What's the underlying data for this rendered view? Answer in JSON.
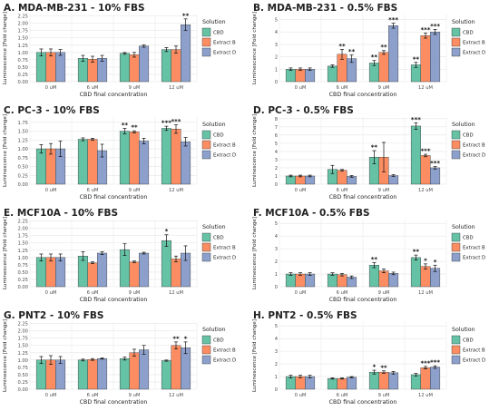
{
  "colors": {
    "CBD": "#66c2a5",
    "Extract B": "#fc8d62",
    "Extract D": "#8da0cb",
    "panel_bg": "#ffffff",
    "grid": "#e6e6e6",
    "axis_text": "#4d4d4d"
  },
  "chart_data": [
    {
      "type": "bar",
      "title": "A. MDA-MB-231 - 10% FBS",
      "xlabel": "CBD final concentration",
      "ylabel": "Luminescence [Fold change]",
      "legend_title": "Solution",
      "legend_position": "right",
      "categories": [
        "0 uM",
        "6 uM",
        "9 uM",
        "12 uM"
      ],
      "ylim": [
        0,
        2.3
      ],
      "yticks": [
        "0.00",
        "0.25",
        "0.50",
        "0.75",
        "1.00",
        "1.25",
        "1.50",
        "1.75",
        "2.00",
        "2.25"
      ],
      "series": [
        {
          "name": "CBD",
          "values": [
            1.0,
            0.8,
            0.97,
            1.1
          ],
          "errors": [
            0.12,
            0.1,
            0.03,
            0.07
          ],
          "sig": [
            "",
            "",
            "",
            ""
          ]
        },
        {
          "name": "Extract B",
          "values": [
            1.0,
            0.77,
            0.92,
            1.1
          ],
          "errors": [
            0.12,
            0.1,
            0.08,
            0.12
          ],
          "sig": [
            "",
            "",
            "",
            ""
          ]
        },
        {
          "name": "Extract D",
          "values": [
            1.0,
            0.8,
            1.22,
            1.95
          ],
          "errors": [
            0.1,
            0.1,
            0.04,
            0.2
          ],
          "sig": [
            "",
            "",
            "",
            "**"
          ]
        }
      ]
    },
    {
      "type": "bar",
      "title": "B. MDA-MB-231 - 0.5% FBS",
      "xlabel": "CBD final concentration",
      "ylabel": "Luminescence [Fold change]",
      "legend_title": "Solution",
      "legend_position": "right",
      "categories": [
        "0 uM",
        "6 uM",
        "9 uM",
        "12 uM"
      ],
      "ylim": [
        0,
        5.4
      ],
      "yticks": [
        "0",
        "1",
        "2",
        "3",
        "4",
        "5"
      ],
      "series": [
        {
          "name": "CBD",
          "values": [
            1.0,
            1.25,
            1.5,
            1.35
          ],
          "errors": [
            0.1,
            0.1,
            0.2,
            0.2
          ],
          "sig": [
            "",
            "",
            "**",
            "**"
          ]
        },
        {
          "name": "Extract B",
          "values": [
            1.0,
            2.2,
            2.35,
            3.7
          ],
          "errors": [
            0.1,
            0.4,
            0.15,
            0.2
          ],
          "sig": [
            "",
            "**",
            "**",
            "***"
          ]
        },
        {
          "name": "Extract D",
          "values": [
            1.0,
            1.85,
            4.5,
            4.0
          ],
          "errors": [
            0.1,
            0.3,
            0.2,
            0.2
          ],
          "sig": [
            "",
            "**",
            "***",
            "***"
          ]
        }
      ]
    },
    {
      "type": "bar",
      "title": "C. PC-3 - 10% FBS",
      "xlabel": "CBD final concentration",
      "ylabel": "Luminescence [Fold change]",
      "legend_title": "Solution",
      "legend_position": "right",
      "categories": [
        "0 uM",
        "6 uM",
        "9 uM",
        "12 uM"
      ],
      "ylim": [
        0,
        1.9
      ],
      "yticks": [
        "0.00",
        "0.25",
        "0.50",
        "0.75",
        "1.00",
        "1.25",
        "1.50",
        "1.75"
      ],
      "series": [
        {
          "name": "CBD",
          "values": [
            1.0,
            1.27,
            1.5,
            1.58
          ],
          "errors": [
            0.12,
            0.04,
            0.08,
            0.06
          ],
          "sig": [
            "",
            "",
            "**",
            "***"
          ]
        },
        {
          "name": "Extract B",
          "values": [
            1.0,
            1.27,
            1.48,
            1.56
          ],
          "errors": [
            0.15,
            0.03,
            0.03,
            0.12
          ],
          "sig": [
            "",
            "",
            "**",
            "***"
          ]
        },
        {
          "name": "Extract D",
          "values": [
            1.0,
            0.95,
            1.22,
            1.2
          ],
          "errors": [
            0.22,
            0.18,
            0.08,
            0.12
          ],
          "sig": [
            "",
            "",
            "",
            ""
          ]
        }
      ]
    },
    {
      "type": "bar",
      "title": "D. PC-3 - 0.5% FBS",
      "xlabel": "CBD final concentration",
      "ylabel": "Luminescence [Fold change]",
      "legend_title": "Solution",
      "legend_position": "right",
      "categories": [
        "0 uM",
        "6 uM",
        "9 uM",
        "12 uM"
      ],
      "ylim": [
        0,
        8.2
      ],
      "yticks": [
        "0",
        "1",
        "2",
        "3",
        "4",
        "5",
        "6",
        "7",
        "8"
      ],
      "series": [
        {
          "name": "CBD",
          "values": [
            1.0,
            1.8,
            3.3,
            7.1
          ],
          "errors": [
            0.1,
            0.5,
            0.8,
            0.4
          ],
          "sig": [
            "",
            "",
            "**",
            "***"
          ]
        },
        {
          "name": "Extract B",
          "values": [
            1.0,
            1.7,
            3.3,
            3.5
          ],
          "errors": [
            0.1,
            0.1,
            1.8,
            0.15
          ],
          "sig": [
            "",
            "",
            "",
            "***"
          ]
        },
        {
          "name": "Extract D",
          "values": [
            1.0,
            0.95,
            1.05,
            2.0
          ],
          "errors": [
            0.1,
            0.1,
            0.1,
            0.15
          ],
          "sig": [
            "",
            "",
            "",
            "***"
          ]
        }
      ]
    },
    {
      "type": "bar",
      "title": "E. MCF10A - 10% FBS",
      "xlabel": "CBD final concentration",
      "ylabel": "Luminescence [Fold change]",
      "legend_title": "Solution",
      "legend_position": "right",
      "categories": [
        "0 uM",
        "6 uM",
        "9 uM",
        "12 uM"
      ],
      "ylim": [
        0,
        2.3
      ],
      "yticks": [
        "0.00",
        "0.25",
        "0.50",
        "0.75",
        "1.00",
        "1.25",
        "1.50",
        "1.75",
        "2.00",
        "2.25"
      ],
      "series": [
        {
          "name": "CBD",
          "values": [
            1.0,
            1.05,
            1.27,
            1.58
          ],
          "errors": [
            0.12,
            0.15,
            0.2,
            0.2
          ],
          "sig": [
            "",
            "",
            "",
            "*"
          ]
        },
        {
          "name": "Extract B",
          "values": [
            1.0,
            0.82,
            0.85,
            0.95
          ],
          "errors": [
            0.12,
            0.03,
            0.03,
            0.1
          ],
          "sig": [
            "",
            "",
            "",
            ""
          ]
        },
        {
          "name": "Extract D",
          "values": [
            1.0,
            1.15,
            1.15,
            1.15
          ],
          "errors": [
            0.12,
            0.05,
            0.03,
            0.25
          ],
          "sig": [
            "",
            "",
            "",
            ""
          ]
        }
      ]
    },
    {
      "type": "bar",
      "title": "F. MCF10A - 0.5% FBS",
      "xlabel": "CBD final concentration",
      "ylabel": "Luminescence [Fold change]",
      "legend_title": "Solution",
      "legend_position": "right",
      "categories": [
        "0 uM",
        "6 uM",
        "9 uM",
        "12 uM"
      ],
      "ylim": [
        0,
        5.3
      ],
      "yticks": [
        "0",
        "1",
        "2",
        "3",
        "4",
        "5"
      ],
      "series": [
        {
          "name": "CBD",
          "values": [
            1.0,
            1.0,
            1.7,
            2.3
          ],
          "errors": [
            0.1,
            0.1,
            0.2,
            0.2
          ],
          "sig": [
            "",
            "",
            "**",
            "**"
          ]
        },
        {
          "name": "Extract B",
          "values": [
            1.0,
            0.95,
            1.25,
            1.6
          ],
          "errors": [
            0.1,
            0.1,
            0.15,
            0.2
          ],
          "sig": [
            "",
            "",
            "",
            "*"
          ]
        },
        {
          "name": "Extract D",
          "values": [
            1.0,
            0.75,
            1.05,
            1.45
          ],
          "errors": [
            0.1,
            0.1,
            0.1,
            0.25
          ],
          "sig": [
            "",
            "",
            "",
            "*"
          ]
        }
      ]
    },
    {
      "type": "bar",
      "title": "G. PNT2 - 10% FBS",
      "xlabel": "CBD final concentration",
      "ylabel": "Luminescence [Fold change]",
      "legend_title": "Solution",
      "legend_position": "right",
      "categories": [
        "0 uM",
        "6 uM",
        "9 uM",
        "12 uM"
      ],
      "ylim": [
        0,
        2.3
      ],
      "yticks": [
        "0.00",
        "0.25",
        "0.50",
        "0.75",
        "1.00",
        "1.25",
        "1.50",
        "1.75",
        "2.00",
        "2.25"
      ],
      "series": [
        {
          "name": "CBD",
          "values": [
            1.0,
            1.0,
            1.05,
            0.98
          ],
          "errors": [
            0.12,
            0.03,
            0.05,
            0.02
          ],
          "sig": [
            "",
            "",
            "",
            ""
          ]
        },
        {
          "name": "Extract B",
          "values": [
            1.0,
            1.02,
            1.25,
            1.5
          ],
          "errors": [
            0.15,
            0.03,
            0.12,
            0.12
          ],
          "sig": [
            "",
            "",
            "",
            "**"
          ]
        },
        {
          "name": "Extract D",
          "values": [
            1.0,
            1.05,
            1.35,
            1.42
          ],
          "errors": [
            0.12,
            0.02,
            0.15,
            0.2
          ],
          "sig": [
            "",
            "",
            "",
            "*"
          ]
        }
      ]
    },
    {
      "type": "bar",
      "title": "H. PNT2 - 0.5% FBS",
      "xlabel": "CBD final concentration",
      "ylabel": "Luminescence [Fold change]",
      "legend_title": "Solution",
      "legend_position": "right",
      "categories": [
        "0 uM",
        "6 uM",
        "9 uM",
        "12 uM"
      ],
      "ylim": [
        0,
        5.3
      ],
      "yticks": [
        "0",
        "1",
        "2",
        "3",
        "4",
        "5"
      ],
      "series": [
        {
          "name": "CBD",
          "values": [
            1.0,
            0.85,
            1.35,
            1.15
          ],
          "errors": [
            0.1,
            0.05,
            0.15,
            0.1
          ],
          "sig": [
            "",
            "",
            "*",
            ""
          ]
        },
        {
          "name": "Extract B",
          "values": [
            1.0,
            0.85,
            1.35,
            1.7
          ],
          "errors": [
            0.1,
            0.05,
            0.1,
            0.1
          ],
          "sig": [
            "",
            "",
            "**",
            "***"
          ]
        },
        {
          "name": "Extract D",
          "values": [
            1.0,
            0.95,
            1.3,
            1.75
          ],
          "errors": [
            0.1,
            0.05,
            0.1,
            0.1
          ],
          "sig": [
            "",
            "",
            "",
            "***"
          ]
        }
      ]
    }
  ]
}
